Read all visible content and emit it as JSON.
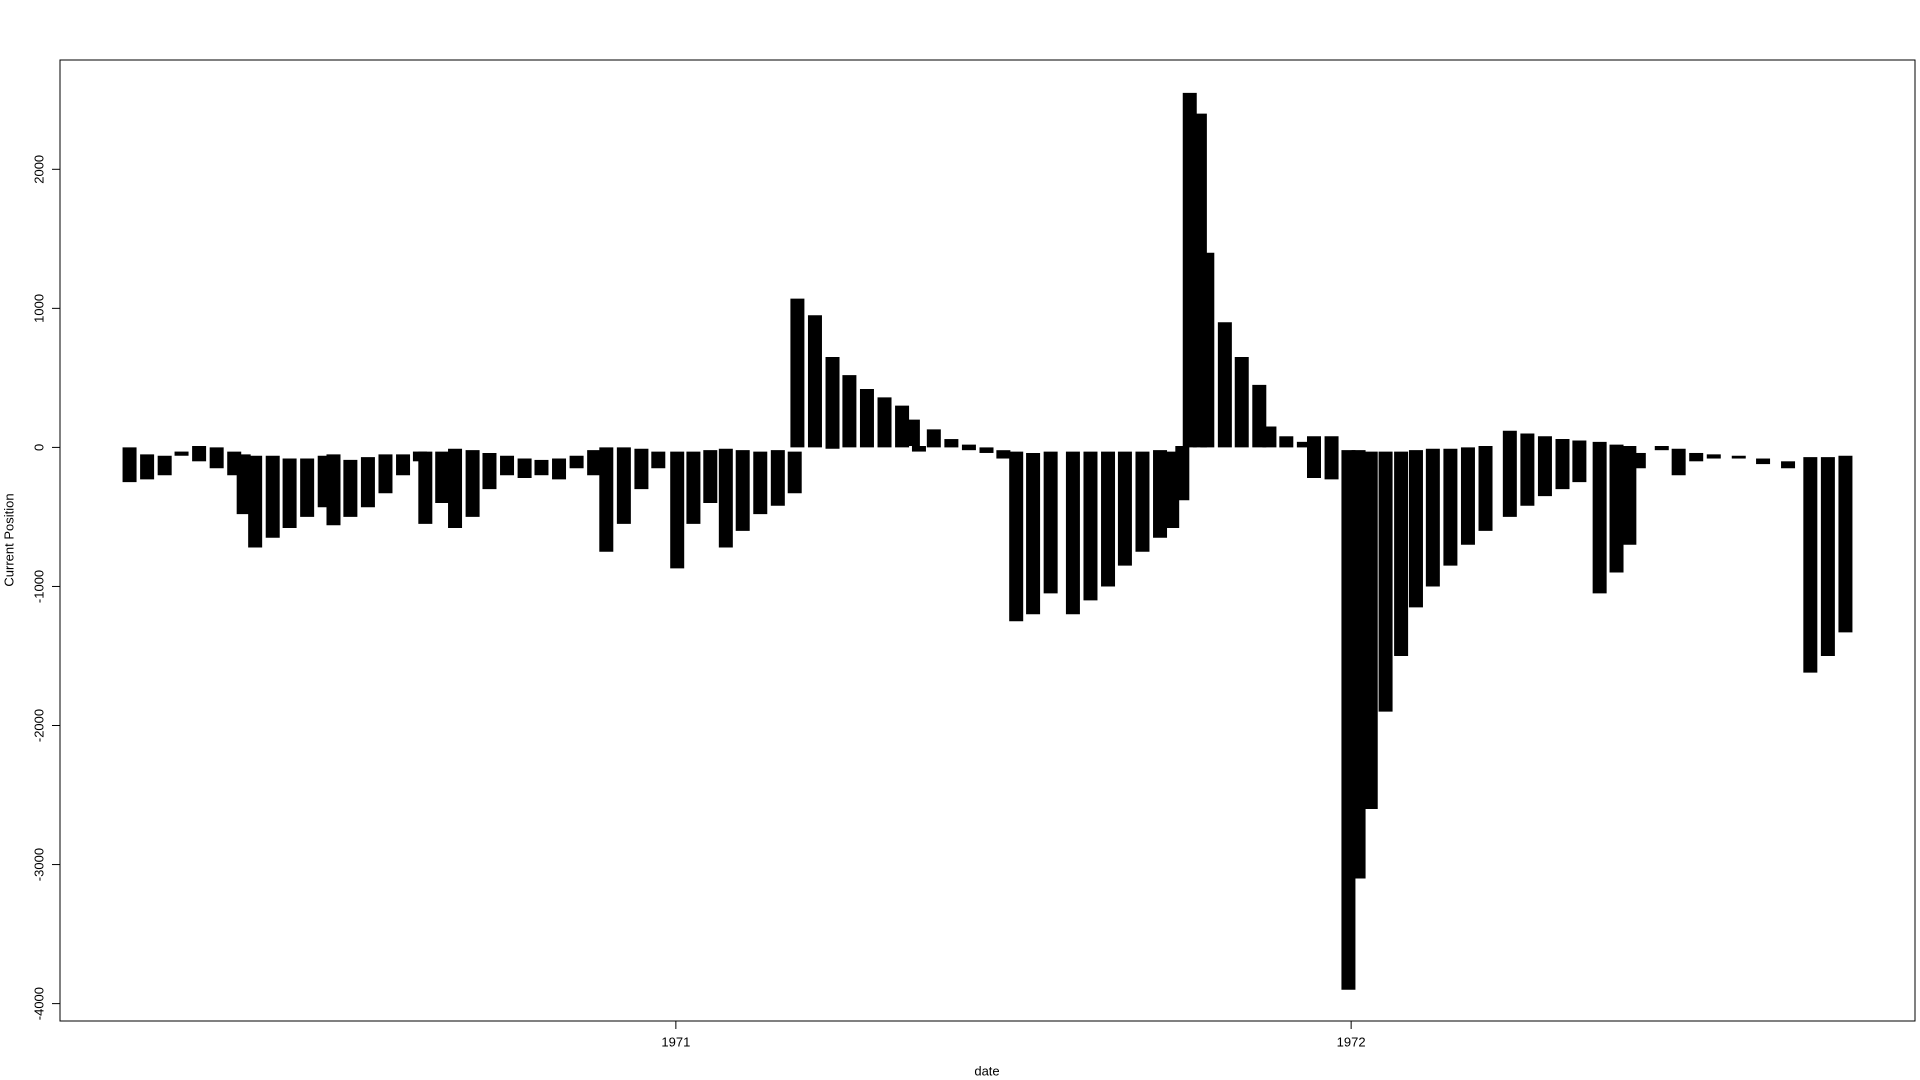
{
  "chart_data": {
    "type": "range",
    "xlabel": "date",
    "ylabel": "Current Position",
    "color": "#000000",
    "x": [
      1970.191,
      1970.217,
      1970.243,
      1970.268,
      1970.294,
      1970.32,
      1970.346,
      1970.36,
      1970.377,
      1970.403,
      1970.428,
      1970.454,
      1970.48,
      1970.493,
      1970.518,
      1970.544,
      1970.57,
      1970.596,
      1970.621,
      1970.629,
      1970.654,
      1970.673,
      1970.699,
      1970.724,
      1970.75,
      1970.776,
      1970.801,
      1970.827,
      1970.853,
      1970.879,
      1970.897,
      1970.923,
      1970.949,
      1970.974,
      1971.002,
      1971.026,
      1971.051,
      1971.074,
      1971.099,
      1971.125,
      1971.151,
      1971.176,
      1971.18,
      1971.206,
      1971.232,
      1971.257,
      1971.283,
      1971.309,
      1971.335,
      1971.351,
      1971.36,
      1971.382,
      1971.408,
      1971.434,
      1971.46,
      1971.485,
      1971.504,
      1971.529,
      1971.555,
      1971.588,
      1971.614,
      1971.64,
      1971.665,
      1971.691,
      1971.717,
      1971.735,
      1971.75,
      1971.761,
      1971.776,
      1971.787,
      1971.813,
      1971.838,
      1971.864,
      1971.879,
      1971.904,
      1971.93,
      1971.945,
      1971.971,
      1971.996,
      1972.011,
      1972.029,
      1972.051,
      1972.074,
      1972.096,
      1972.121,
      1972.147,
      1972.173,
      1972.199,
      1972.235,
      1972.261,
      1972.287,
      1972.313,
      1972.338,
      1972.368,
      1972.393,
      1972.412,
      1972.426,
      1972.46,
      1972.485,
      1972.511,
      1972.537,
      1972.574,
      1972.61,
      1972.647,
      1972.68,
      1972.706,
      1972.732
    ],
    "high": [
      0,
      -50,
      -60,
      -30,
      10,
      0,
      -30,
      -50,
      -60,
      -60,
      -80,
      -80,
      -60,
      -50,
      -90,
      -70,
      -50,
      -50,
      -30,
      -30,
      -30,
      -10,
      -20,
      -40,
      -60,
      -80,
      -90,
      -80,
      -60,
      -20,
      0,
      0,
      -10,
      -30,
      -30,
      -30,
      -20,
      -10,
      -20,
      -30,
      -20,
      -30,
      1070,
      950,
      650,
      520,
      420,
      360,
      300,
      200,
      10,
      130,
      60,
      20,
      0,
      -20,
      -30,
      -40,
      -30,
      -30,
      -30,
      -30,
      -30,
      -30,
      -20,
      -30,
      10,
      2550,
      2400,
      1400,
      900,
      650,
      450,
      150,
      80,
      40,
      80,
      80,
      -20,
      -20,
      -30,
      -30,
      -30,
      -20,
      -10,
      -10,
      0,
      10,
      120,
      100,
      80,
      60,
      50,
      40,
      20,
      10,
      -40,
      10,
      -10,
      -40,
      -50,
      -60,
      -80,
      -100,
      -70,
      -70,
      -60
    ],
    "low": [
      -250,
      -230,
      -200,
      -60,
      -100,
      -150,
      -200,
      -480,
      -720,
      -650,
      -580,
      -500,
      -430,
      -560,
      -500,
      -430,
      -330,
      -200,
      -100,
      -550,
      -400,
      -580,
      -500,
      -300,
      -200,
      -220,
      -200,
      -230,
      -150,
      -200,
      -750,
      -550,
      -300,
      -150,
      -870,
      -550,
      -400,
      -720,
      -600,
      -480,
      -420,
      -330,
      0,
      0,
      -10,
      0,
      0,
      0,
      0,
      10,
      -30,
      0,
      0,
      -20,
      -40,
      -80,
      -1250,
      -1200,
      -1050,
      -1200,
      -1100,
      -1000,
      -850,
      -750,
      -650,
      -580,
      -380,
      0,
      0,
      0,
      0,
      0,
      0,
      0,
      0,
      0,
      -220,
      -230,
      -3900,
      -3100,
      -2600,
      -1900,
      -1500,
      -1150,
      -1000,
      -850,
      -700,
      -600,
      -500,
      -420,
      -350,
      -300,
      -250,
      -1050,
      -900,
      -700,
      -150,
      -20,
      -200,
      -100,
      -80,
      -80,
      -120,
      -150,
      -1620,
      -1500,
      -1330
    ],
    "xlim": [
      1970.088,
      1972.835
    ],
    "ylim": [
      -4125,
      2786
    ],
    "xticks": [
      1971,
      1972
    ],
    "yticks": [
      -4000,
      -3000,
      -2000,
      -1000,
      0,
      1000,
      2000
    ]
  }
}
